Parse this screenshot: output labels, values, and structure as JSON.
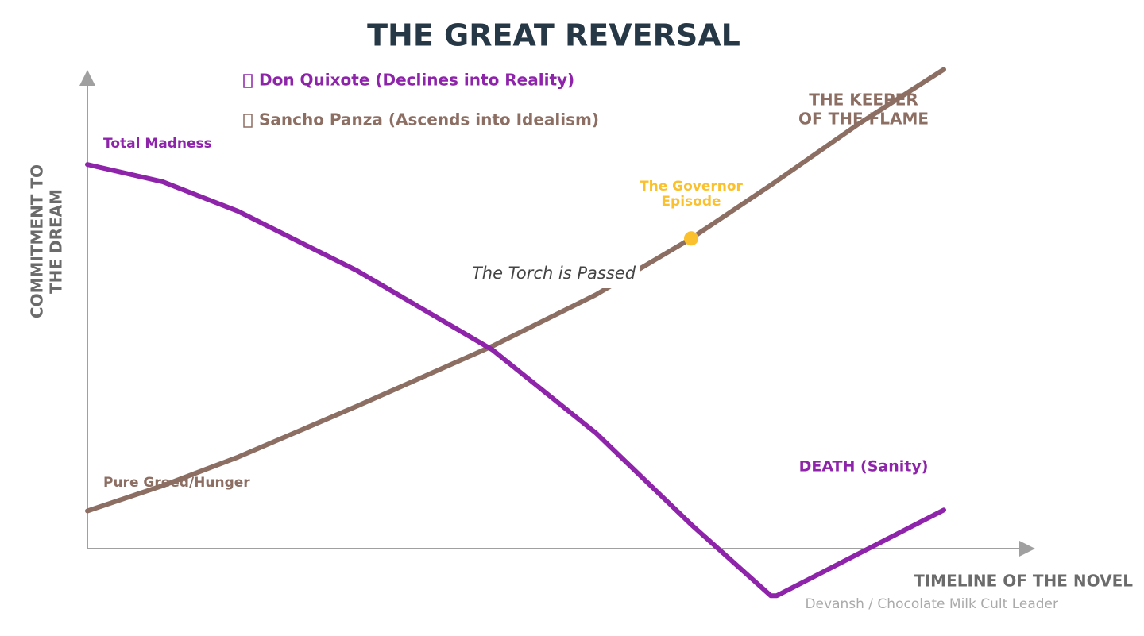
{
  "chart_data": {
    "type": "line",
    "title": "THE GREAT REVERSAL",
    "x_label": "TIMELINE OF THE NOVEL",
    "y_label": [
      "COMMITMENT TO",
      "THE DREAM"
    ],
    "credit": "Devansh / Chocolate Milk Cult Leader",
    "xlim": [
      0,
      100
    ],
    "ylim": [
      -12,
      104
    ],
    "series": [
      {
        "name": "Don Quixote (Declines into Reality)",
        "color": "#8e24aa",
        "x": [
          0,
          8.8,
          17.6,
          31.5,
          47.3,
          59.4,
          70.5,
          79.8,
          80.5,
          100
        ],
        "values": [
          82.1,
          78.4,
          72.1,
          59.4,
          42.5,
          24.7,
          5.2,
          -10.0,
          -10.0,
          8.3
        ]
      },
      {
        "name": "Sancho Panza (Ascends into Idealism)",
        "color": "#8d6e63",
        "x": [
          0,
          8.8,
          17.6,
          31.5,
          47.3,
          59.4,
          70.5,
          79.8,
          90.0,
          100
        ],
        "values": [
          8.1,
          13.5,
          19.6,
          30.5,
          43.3,
          54.3,
          66.3,
          77.7,
          90.7,
          102.4
        ]
      }
    ],
    "highlight": {
      "x": 70.5,
      "y": 66.3,
      "color": "#fbc02d",
      "label": [
        "The Governor",
        "Episode"
      ]
    },
    "annotations": [
      {
        "lines": [
          "Total Madness"
        ],
        "color": "#8e24aa"
      },
      {
        "lines": [
          "Pure Greed/Hunger"
        ],
        "color": "#8d6e63"
      },
      {
        "lines": [
          "THE KEEPER",
          "OF THE FLAME"
        ],
        "color": "#8d6e63"
      },
      {
        "lines": [
          "The Torch is Passed"
        ],
        "color": "#444444"
      },
      {
        "lines": [
          "DEATH (Sanity)"
        ],
        "color": "#8e24aa"
      }
    ]
  }
}
